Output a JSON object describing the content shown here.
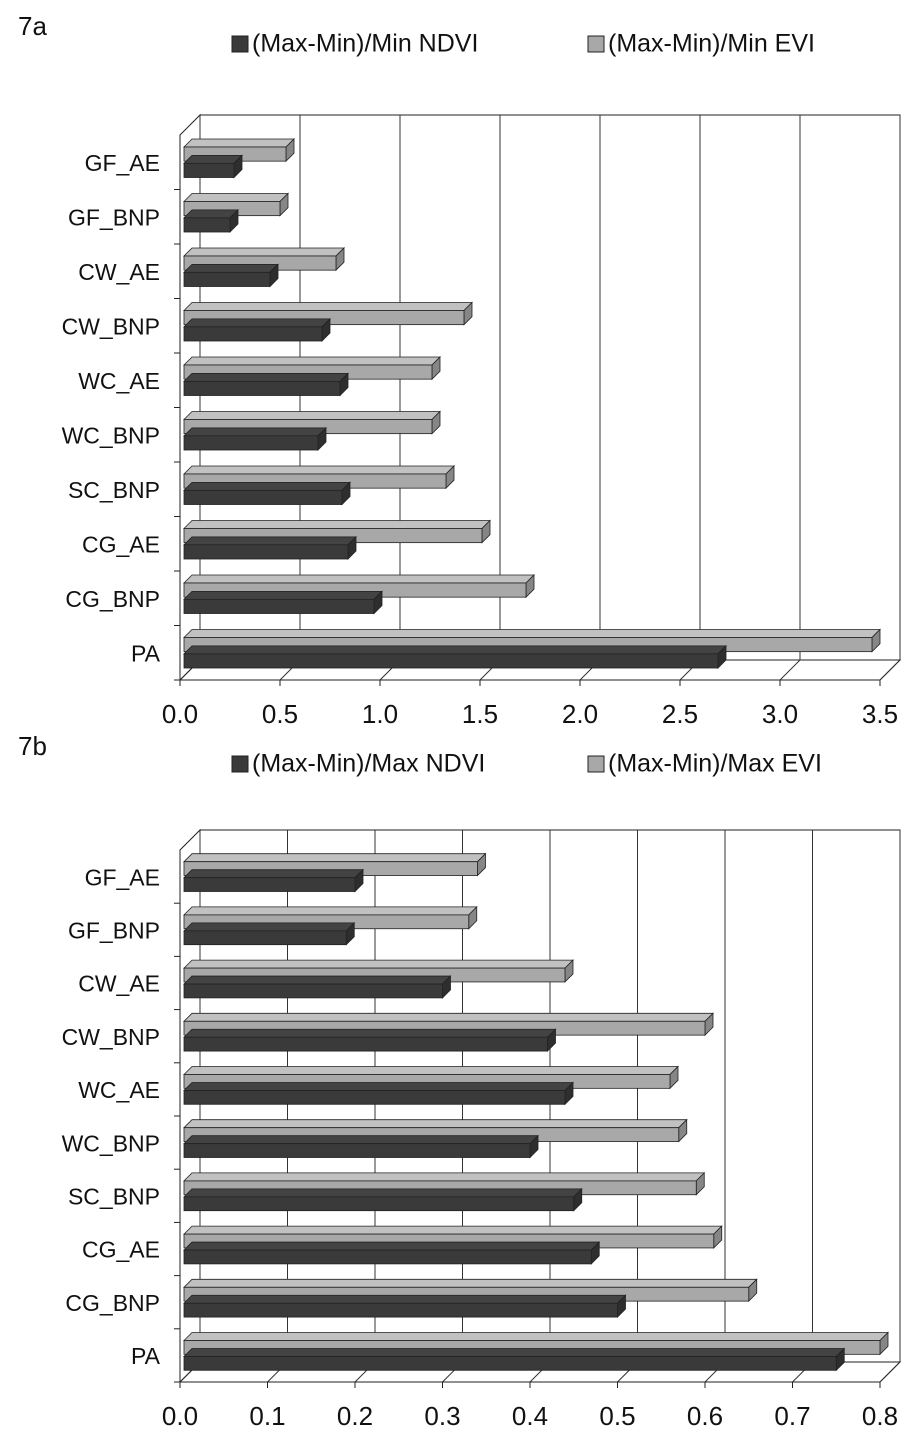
{
  "chart_data": [
    {
      "type": "bar3d",
      "title": "7a",
      "categories": [
        "GF_AE",
        "GF_BNP",
        "CW_AE",
        "CW_BNP",
        "WC_AE",
        "WC_BNP",
        "SC_BNP",
        "CG_AE",
        "CG_BNP",
        "PA"
      ],
      "series": [
        {
          "name": "(Max-Min)/Min NDVI",
          "color": "#3a3a3a",
          "values": [
            0.27,
            0.25,
            0.45,
            0.71,
            0.8,
            0.69,
            0.81,
            0.84,
            0.97,
            2.69
          ]
        },
        {
          "name": "(Max-Min)/Min EVI",
          "color": "#a8a8a8",
          "values": [
            0.53,
            0.5,
            0.78,
            1.42,
            1.26,
            1.26,
            1.33,
            1.51,
            1.73,
            3.46
          ]
        }
      ],
      "xlim": [
        0,
        3.5
      ],
      "xticks": [
        {
          "value": 0,
          "label": "0.0"
        },
        0.5,
        {
          "value": 1,
          "label": "1.0"
        },
        1.5,
        {
          "value": 2,
          "label": "2.0"
        },
        2.5,
        {
          "value": 3,
          "label": "3.0"
        },
        3.5
      ],
      "grid": true
    },
    {
      "type": "bar3d",
      "title": "7b",
      "categories": [
        "GF_AE",
        "GF_BNP",
        "CW_AE",
        "CW_BNP",
        "WC_AE",
        "WC_BNP",
        "SC_BNP",
        "CG_AE",
        "CG_BNP",
        "PA"
      ],
      "series": [
        {
          "name": "(Max-Min)/Max NDVI",
          "color": "#3a3a3a",
          "values": [
            0.2,
            0.19,
            0.3,
            0.42,
            0.44,
            0.4,
            0.45,
            0.47,
            0.5,
            0.75
          ]
        },
        {
          "name": "(Max-Min)/Max EVI",
          "color": "#a8a8a8",
          "values": [
            0.34,
            0.33,
            0.44,
            0.6,
            0.56,
            0.57,
            0.59,
            0.61,
            0.65,
            0.8
          ]
        }
      ],
      "xlim": [
        0,
        0.8
      ],
      "xticks": [
        {
          "value": 0,
          "label": "0.0"
        },
        0.1,
        0.2,
        0.3,
        0.4,
        0.5,
        0.6,
        0.7,
        0.8
      ],
      "grid": true
    }
  ]
}
